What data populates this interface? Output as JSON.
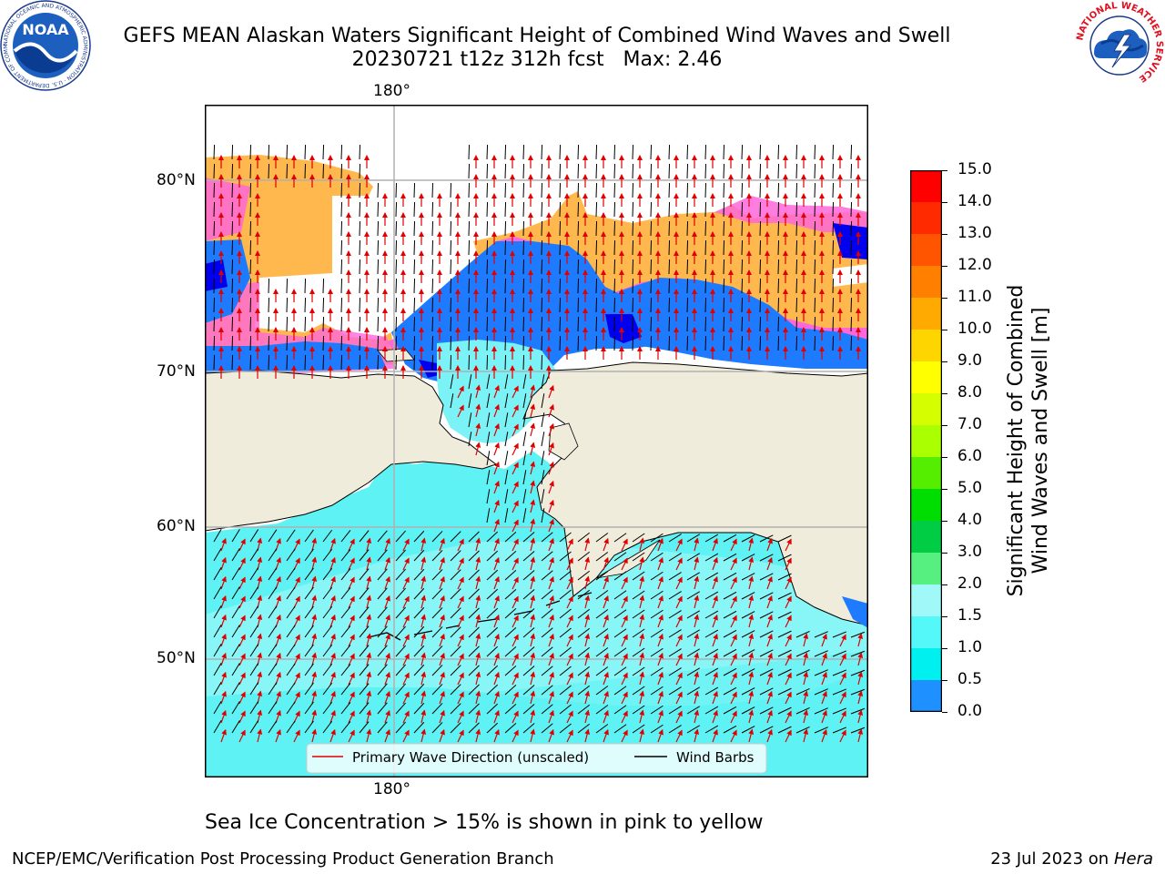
{
  "title": {
    "line1": "GEFS MEAN Alaskan Waters Significant Height of Combined Wind Waves and Swell",
    "line2": "20230721 t12z 312h fcst   Max: 2.46"
  },
  "logos": {
    "left": "NOAA",
    "left_ring": "NATIONAL OCEANIC AND ATMOSPHERIC ADMINISTRATION · U.S. DEPARTMENT OF COMMERCE",
    "right_ring": "NATIONAL WEATHER SERVICE"
  },
  "map": {
    "lon_labels": [
      "180°",
      "180°"
    ],
    "lat_labels": [
      "80°N",
      "70°N",
      "60°N",
      "50°N"
    ],
    "colors": {
      "land": "#efecdc",
      "ocean_low": "#5cf0f5",
      "ocean_mid": "#1e90ff",
      "ice_pink": "#ff66d9",
      "ice_orange": "#ffb84d",
      "arrow": "#e00000",
      "barb": "#000000",
      "grid": "#b0b0b0"
    },
    "legend": {
      "wave_direction": "Primary Wave Direction (unscaled)",
      "wind_barbs": "Wind Barbs"
    }
  },
  "colorbar": {
    "title_line1": "Significant Height of Combined",
    "title_line2": "Wind Waves and Swell [m]",
    "ticks": [
      "15.0",
      "14.0",
      "13.0",
      "12.0",
      "11.0",
      "10.0",
      "9.0",
      "8.0",
      "7.0",
      "6.0",
      "5.0",
      "4.0",
      "3.0",
      "2.0",
      "1.5",
      "1.0",
      "0.5",
      "0.0"
    ],
    "colors": [
      "#ff0000",
      "#ff2a00",
      "#ff5500",
      "#ff8000",
      "#ffaa00",
      "#ffd500",
      "#ffff00",
      "#d5ff00",
      "#aaff00",
      "#55ee00",
      "#00dd00",
      "#00cc44",
      "#55f080",
      "#a0f8f8",
      "#55f8f8",
      "#00f0f0",
      "#1e90ff",
      "#0000ff"
    ]
  },
  "caption": "Sea Ice Concentration > 15% is shown in pink to yellow",
  "footer": {
    "left": "NCEP/EMC/Verification Post Processing Product Generation Branch",
    "right_date": "23 Jul 2023 on ",
    "right_host": "Hera"
  }
}
